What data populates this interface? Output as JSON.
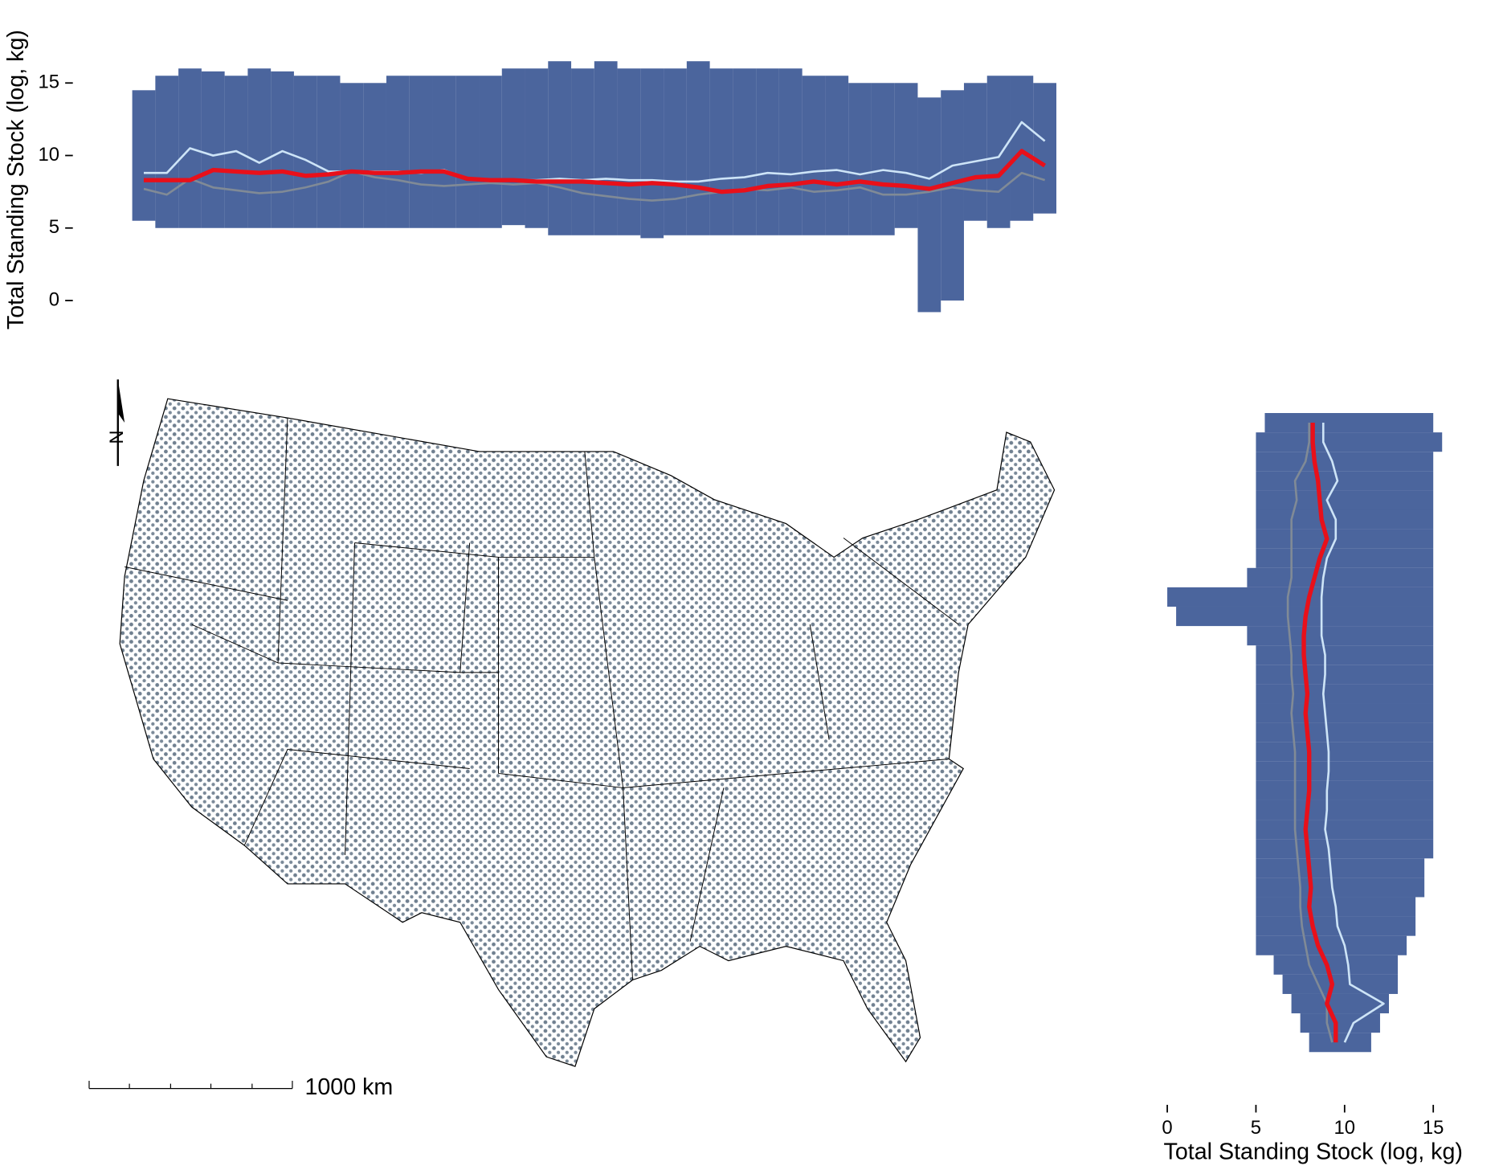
{
  "chart_data": [
    {
      "type": "line",
      "orientation": "vertical",
      "ylabel": "Total Standing Stock (log, kg)",
      "ylim": [
        -2,
        19
      ],
      "yticks": [
        0,
        5,
        10,
        15
      ],
      "band": {
        "color": "#2b4a8c",
        "low": [
          5.5,
          5.0,
          5.0,
          5.0,
          5.0,
          5.0,
          5.0,
          5.0,
          5.0,
          5.0,
          5.0,
          5.0,
          5.0,
          5.0,
          5.0,
          5.0,
          5.2,
          5.0,
          4.5,
          4.5,
          4.5,
          4.5,
          4.3,
          4.5,
          4.5,
          4.5,
          4.5,
          4.5,
          4.5,
          4.5,
          4.5,
          4.5,
          4.5,
          5.0,
          -0.8,
          0.0,
          5.5,
          5.0,
          5.5,
          6.0
        ],
        "high": [
          14.5,
          15.5,
          16.0,
          15.8,
          15.5,
          16.0,
          15.8,
          15.5,
          15.5,
          15.0,
          15.0,
          15.5,
          15.5,
          15.5,
          15.5,
          15.5,
          16.0,
          16.0,
          16.5,
          16.0,
          16.5,
          16.0,
          16.0,
          16.0,
          16.5,
          16.0,
          16.0,
          16.0,
          16.0,
          15.5,
          15.5,
          15.0,
          15.0,
          15.0,
          14.0,
          14.5,
          15.0,
          15.5,
          15.5,
          15.0
        ]
      },
      "series": [
        {
          "color": "#808a96",
          "values": [
            7.7,
            7.3,
            8.4,
            7.8,
            7.6,
            7.4,
            7.5,
            7.8,
            8.2,
            8.9,
            8.5,
            8.3,
            8.0,
            7.9,
            8.0,
            8.1,
            8.0,
            8.1,
            7.8,
            7.4,
            7.2,
            7.0,
            6.9,
            7.0,
            7.3,
            7.5,
            7.7,
            7.6,
            7.8,
            7.5,
            7.6,
            7.8,
            7.3,
            7.3,
            7.5,
            7.8,
            7.6,
            7.5,
            8.8,
            8.3
          ]
        },
        {
          "color": "#cde4f7",
          "values": [
            8.8,
            8.8,
            10.5,
            10.0,
            10.3,
            9.5,
            10.3,
            9.7,
            8.9,
            8.9,
            8.9,
            8.9,
            8.8,
            9.0,
            8.4,
            8.3,
            8.3,
            8.3,
            8.4,
            8.3,
            8.4,
            8.3,
            8.3,
            8.2,
            8.2,
            8.4,
            8.5,
            8.8,
            8.7,
            8.9,
            9.0,
            8.7,
            9.0,
            8.8,
            8.4,
            9.3,
            9.6,
            9.9,
            12.3,
            11.0
          ]
        },
        {
          "color": "#e8101a",
          "values": [
            8.3,
            8.3,
            8.3,
            9.0,
            8.9,
            8.8,
            8.9,
            8.6,
            8.7,
            8.9,
            8.8,
            8.8,
            8.9,
            8.9,
            8.4,
            8.3,
            8.3,
            8.2,
            8.2,
            8.2,
            8.1,
            8.0,
            8.1,
            8.0,
            7.8,
            7.5,
            7.6,
            7.9,
            8.0,
            8.2,
            8.0,
            8.2,
            8.0,
            7.9,
            7.7,
            8.1,
            8.5,
            8.6,
            10.3,
            9.3
          ]
        }
      ]
    },
    {
      "type": "line",
      "orientation": "horizontal",
      "xlabel": "Total Standing Stock (log, kg)",
      "xlim": [
        -1.5,
        18.5
      ],
      "xticks": [
        0,
        5,
        10,
        15
      ],
      "band": {
        "color": "#2b4a8c",
        "low": [
          5.5,
          5,
          5,
          5,
          5,
          5,
          5,
          5,
          4.5,
          0,
          0.5,
          4.5,
          5,
          5,
          5,
          5,
          5,
          5,
          5,
          5,
          5,
          5,
          5,
          5,
          5,
          5,
          5,
          5,
          6,
          6.5,
          7,
          7.5,
          8
        ],
        "high": [
          15,
          15.5,
          15,
          15,
          15,
          15,
          15,
          15,
          15,
          15,
          15,
          15,
          15,
          15,
          15,
          15,
          15,
          15,
          15,
          15,
          15,
          15,
          15,
          14.5,
          14.5,
          14,
          14,
          13.5,
          13,
          13,
          12.5,
          12,
          11.5
        ]
      },
      "series": [
        {
          "color": "#808a96",
          "values": [
            8.0,
            8.0,
            7.8,
            7.2,
            7.3,
            7.0,
            7.0,
            7.0,
            7.0,
            6.8,
            6.8,
            6.9,
            7.0,
            7.0,
            7.1,
            7.0,
            7.1,
            7.2,
            7.2,
            7.2,
            7.2,
            7.2,
            7.3,
            7.4,
            7.5,
            7.5,
            7.6,
            7.8,
            8.0,
            8.5,
            9.0,
            9.0,
            9.3
          ]
        },
        {
          "color": "#cde4f7",
          "values": [
            8.8,
            8.8,
            9.3,
            9.6,
            9.0,
            9.5,
            9.5,
            9.0,
            8.8,
            8.7,
            8.7,
            8.7,
            8.9,
            8.9,
            8.8,
            8.9,
            9.0,
            9.1,
            9.1,
            9.0,
            9.0,
            8.9,
            9.1,
            9.2,
            9.3,
            9.5,
            9.6,
            10.0,
            10.2,
            10.3,
            12.2,
            10.5,
            10.0
          ]
        },
        {
          "color": "#e8101a",
          "values": [
            8.2,
            8.2,
            8.3,
            8.5,
            8.6,
            8.7,
            9.0,
            8.6,
            8.3,
            8.0,
            7.8,
            7.7,
            7.7,
            7.8,
            7.9,
            7.8,
            7.9,
            8.0,
            8.0,
            8.0,
            7.9,
            7.8,
            7.9,
            8.0,
            8.1,
            8.0,
            8.2,
            8.5,
            9.0,
            9.3,
            9.0,
            9.5,
            9.5
          ]
        }
      ]
    }
  ],
  "map": {
    "north_label": "N",
    "scale_label": "1000 km"
  }
}
